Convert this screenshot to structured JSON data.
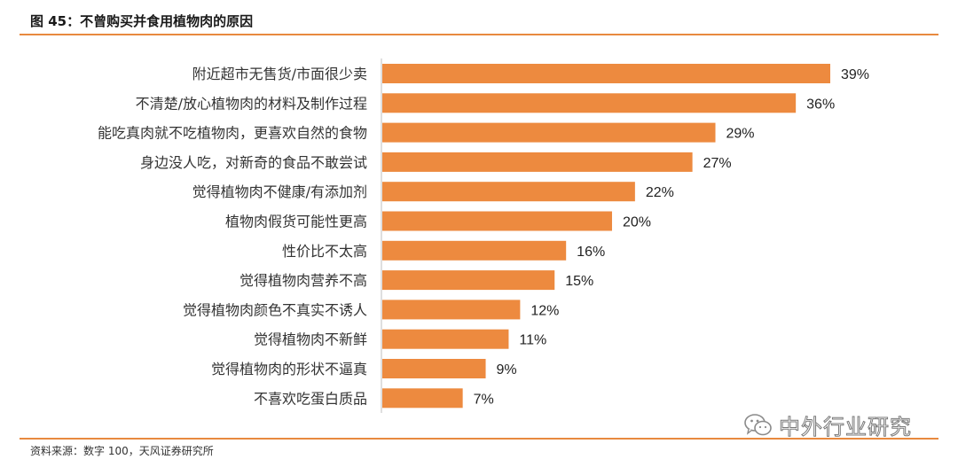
{
  "header": {
    "title": "图 45：不曾购买并食用植物肉的原因"
  },
  "footer": {
    "source": "资料来源：数字 100，天风证券研究所"
  },
  "watermark": {
    "text": "中外行业研究",
    "icon": "wechat-icon"
  },
  "colors": {
    "bar": "#ed8a3f",
    "accent_line": "#e8893f",
    "axis": "#bfbfbf"
  },
  "chart_data": {
    "type": "bar",
    "orientation": "horizontal",
    "categories": [
      "附近超市无售货/市面很少卖",
      "不清楚/放心植物肉的材料及制作过程",
      "能吃真肉就不吃植物肉，更喜欢自然的食物",
      "身边没人吃，对新奇的食品不敢尝试",
      "觉得植物肉不健康/有添加剂",
      "植物肉假货可能性更高",
      "性价比不太高",
      "觉得植物肉营养不高",
      "觉得植物肉颜色不真实不诱人",
      "觉得植物肉不新鲜",
      "觉得植物肉的形状不逼真",
      "不喜欢吃蛋白质品"
    ],
    "values": [
      39,
      36,
      29,
      27,
      22,
      20,
      16,
      15,
      12,
      11,
      9,
      7
    ],
    "value_labels": [
      "39%",
      "36%",
      "29%",
      "27%",
      "22%",
      "20%",
      "16%",
      "15%",
      "12%",
      "11%",
      "9%",
      "7%"
    ],
    "xlim": [
      0,
      45
    ],
    "grid": false,
    "legend": "none"
  }
}
